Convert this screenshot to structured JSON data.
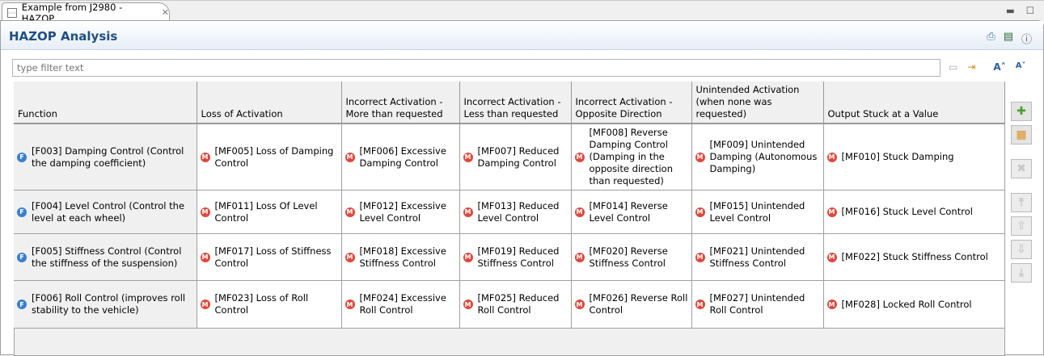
{
  "tab": {
    "title": "Example from J2980 - HAZOP"
  },
  "header": {
    "title": "HAZOP Analysis"
  },
  "filter": {
    "placeholder": "type filter text"
  },
  "columns": [
    "Function",
    "Loss of Activation",
    "Incorrect Activation - More than requested",
    "Incorrect Activation - Less than requested",
    "Incorrect Activation - Opposite Direction",
    "Unintended Activation (when none was requested)",
    "Output Stuck at a Value"
  ],
  "rows": [
    {
      "function": "[F003] Damping Control (Control  the damping coefficient)",
      "cells": [
        "[MF005] Loss of Damping Control",
        "[MF006] Excessive Damping Control",
        "[MF007] Reduced Damping Control",
        "[MF008] Reverse Damping Control (Damping in the opposite direction than requested)",
        "[MF009] Unintended Damping (Autonomous Damping)",
        "[MF010] Stuck Damping"
      ]
    },
    {
      "function": "[F004] Level Control (Control the level at each wheel)",
      "cells": [
        "[MF011] Loss Of Level Control",
        "[MF012] Excessive Level Control",
        "[MF013] Reduced Level Control",
        "[MF014] Reverse Level Control",
        "[MF015] Unintended Level Control",
        "[MF016] Stuck Level Control"
      ]
    },
    {
      "function": "[F005] Stiffness Control (Control the stiffness of the suspension)",
      "cells": [
        "[MF017] Loss of Stiffness Control",
        "[MF018] Excessive Stiffness Control",
        "[MF019] Reduced Stiffness Control",
        "[MF020] Reverse Stiffness Control",
        "[MF021] Unintended Stiffness Control",
        "[MF022] Stuck Stiffness Control"
      ]
    },
    {
      "function": "[F006] Roll Control (improves roll stability to the vehicle)",
      "cells": [
        "[MF023] Loss of Roll Control",
        "[MF024] Excessive Roll Control",
        "[MF025] Reduced Roll Control",
        "[MF026] Reverse Roll Control",
        "[MF027] Unintended Roll Control",
        "[MF028] Locked Roll Control"
      ]
    }
  ],
  "badges": {
    "function": "F",
    "malfunction": "M"
  },
  "colors": {
    "title": "#1f4f84",
    "function_badge": "#3a7fd0",
    "malfunction_badge": "#e0483c"
  }
}
